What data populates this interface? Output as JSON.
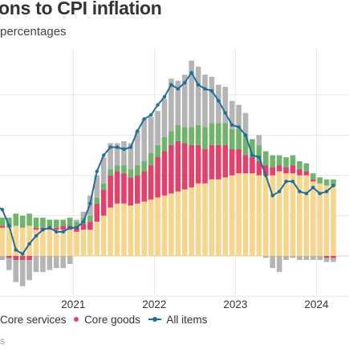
{
  "title": "ons to CPI inflation",
  "subtitle": "percentages",
  "source": "s",
  "legend": {
    "core_services": "Core services",
    "core_goods": "Core goods",
    "all_items": "All items"
  },
  "colors": {
    "core_services": "#f6d68c",
    "core_goods": "#e2416b",
    "food": "#6fb46a",
    "energy": "#b4b4b4",
    "all_items": "#1f6f9a",
    "grid": "#e6e6e6"
  },
  "chart_data": {
    "type": "bar",
    "stacked": true,
    "title": "ons to CPI inflation",
    "subtitle": "percentages",
    "x_tick_labels": [
      "2021",
      "2022",
      "2023",
      "2024"
    ],
    "ylim": [
      -2,
      9.5
    ],
    "grid": true,
    "legend_placement": "bottom",
    "categories": [
      "2020-01",
      "2020-02",
      "2020-03",
      "2020-04",
      "2020-05",
      "2020-06",
      "2020-07",
      "2020-08",
      "2020-09",
      "2020-10",
      "2020-11",
      "2020-12",
      "2021-01",
      "2021-02",
      "2021-03",
      "2021-04",
      "2021-05",
      "2021-06",
      "2021-07",
      "2021-08",
      "2021-09",
      "2021-10",
      "2021-11",
      "2021-12",
      "2022-01",
      "2022-02",
      "2022-03",
      "2022-04",
      "2022-05",
      "2022-06",
      "2022-07",
      "2022-08",
      "2022-09",
      "2022-10",
      "2022-11",
      "2022-12",
      "2023-01",
      "2023-02",
      "2023-03",
      "2023-04",
      "2023-05",
      "2023-06",
      "2023-07",
      "2023-08",
      "2023-09",
      "2023-10",
      "2023-11",
      "2023-12",
      "2024-01",
      "2024-02",
      "2024-03"
    ],
    "series": [
      {
        "name": "Core services",
        "values": [
          1.4,
          1.4,
          1.4,
          1.5,
          1.4,
          1.5,
          1.3,
          1.3,
          1.3,
          1.3,
          1.3,
          1.3,
          1.2,
          1.3,
          1.3,
          1.7,
          2.0,
          2.4,
          2.6,
          2.6,
          2.5,
          2.6,
          2.7,
          2.8,
          2.9,
          3.0,
          3.1,
          3.2,
          3.3,
          3.4,
          3.6,
          3.6,
          3.8,
          3.8,
          3.9,
          4.0,
          4.1,
          4.1,
          4.1,
          4.0,
          4.0,
          4.0,
          4.2,
          4.1,
          4.1,
          4.0,
          4.0,
          3.7,
          3.6,
          3.5,
          3.5
        ]
      },
      {
        "name": "Core goods",
        "values": [
          0.1,
          0.1,
          -0.1,
          -0.2,
          -0.2,
          -0.2,
          0.1,
          0.1,
          0.1,
          0.1,
          0.2,
          0.2,
          0.2,
          0.3,
          0.4,
          0.9,
          1.3,
          1.6,
          1.6,
          1.5,
          1.4,
          1.4,
          1.5,
          1.7,
          2.0,
          2.2,
          2.4,
          2.5,
          2.3,
          2.1,
          1.9,
          1.7,
          1.7,
          1.7,
          1.6,
          1.3,
          1.2,
          0.9,
          0.8,
          0.7,
          0.5,
          0.4,
          0.3,
          0.3,
          0.4,
          0.3,
          0.2,
          0.1,
          0.0,
          -0.1,
          -0.1
        ]
      },
      {
        "name": "",
        "values": [
          0.4,
          0.4,
          0.5,
          0.6,
          0.6,
          0.6,
          0.5,
          0.5,
          0.4,
          0.4,
          0.3,
          0.4,
          0.3,
          0.3,
          0.3,
          0.3,
          0.3,
          0.3,
          0.3,
          0.4,
          0.4,
          0.5,
          0.5,
          0.6,
          0.6,
          0.7,
          0.7,
          0.8,
          0.8,
          0.9,
          1.0,
          1.1,
          1.1,
          1.1,
          1.1,
          1.0,
          1.0,
          1.0,
          0.9,
          0.8,
          0.7,
          0.6,
          0.5,
          0.5,
          0.5,
          0.4,
          0.4,
          0.3,
          0.3,
          0.3,
          0.3
        ]
      },
      {
        "name": "",
        "values": [
          0.3,
          -0.2,
          -0.6,
          -1.1,
          -1.3,
          -1.0,
          -0.8,
          -0.8,
          -0.7,
          -0.6,
          -0.6,
          -0.4,
          0.1,
          0.3,
          1.0,
          1.1,
          1.3,
          1.3,
          1.1,
          1.2,
          1.3,
          1.7,
          2.1,
          1.8,
          1.7,
          1.9,
          2.6,
          2.2,
          2.6,
          3.3,
          2.9,
          2.6,
          2.3,
          1.9,
          1.8,
          1.4,
          1.2,
          1.1,
          0.0,
          0.5,
          -0.1,
          -0.6,
          -0.8,
          -0.2,
          -0.1,
          -0.2,
          -0.2,
          -0.2,
          -0.2,
          -0.2,
          -0.2
        ]
      },
      {
        "name": "All items",
        "type": "line",
        "values": [
          2.5,
          2.3,
          1.5,
          0.3,
          0.1,
          0.6,
          1.0,
          1.3,
          1.4,
          1.2,
          1.2,
          1.4,
          1.4,
          1.7,
          2.6,
          4.2,
          5.0,
          5.4,
          5.4,
          5.3,
          5.4,
          6.2,
          6.8,
          7.0,
          7.5,
          7.9,
          8.5,
          8.3,
          8.6,
          9.1,
          8.5,
          8.3,
          8.2,
          7.7,
          7.1,
          6.5,
          6.4,
          6.0,
          5.0,
          4.9,
          4.0,
          3.0,
          3.2,
          3.7,
          3.7,
          3.2,
          3.1,
          3.4,
          3.1,
          3.2,
          3.5
        ]
      }
    ]
  }
}
